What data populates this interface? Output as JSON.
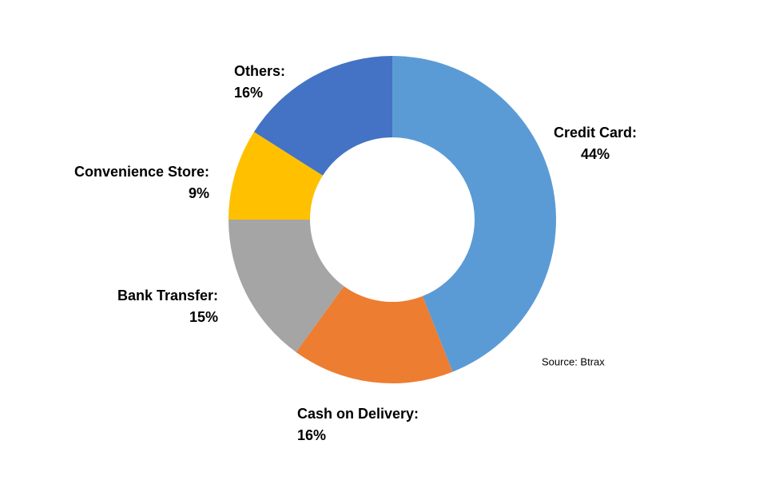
{
  "chart_data": {
    "type": "donut",
    "categories": [
      "Credit Card:",
      "Cash on Delivery:",
      "Bank Transfer:",
      "Convenience Store:",
      "Others:"
    ],
    "values": [
      44,
      16,
      15,
      9,
      16
    ],
    "value_labels": [
      "44%",
      "16%",
      "15%",
      "9%",
      "16%"
    ],
    "colors": [
      "#5b9bd5",
      "#ed7d31",
      "#a5a5a5",
      "#ffc000",
      "#4472c4"
    ],
    "annotation": "Source: Btrax"
  }
}
